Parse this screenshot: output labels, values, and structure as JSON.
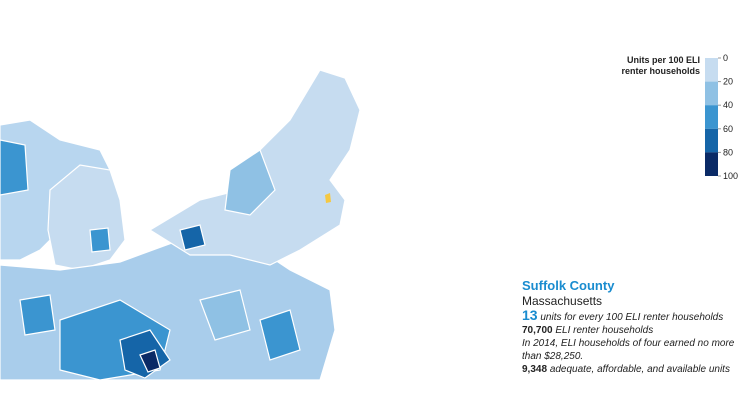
{
  "legend": {
    "title": "Units per 100 ELI renter households",
    "ticks": [
      0,
      20,
      40,
      60,
      80,
      100
    ],
    "colors": [
      "#c6dcf0",
      "#8fc1e4",
      "#3b95d0",
      "#1565a8",
      "#0a2a66"
    ]
  },
  "info": {
    "county": "Suffolk County",
    "state": "Massachusetts",
    "units_number": "13",
    "units_text": "units for every 100 ELI renter households",
    "households_number": "70,700",
    "households_text": "ELI renter households",
    "income_note": "In 2014, ELI households of four earned no more than $28,250.",
    "available_number": "9,348",
    "available_text": "adequate, affordable, and available units"
  }
}
